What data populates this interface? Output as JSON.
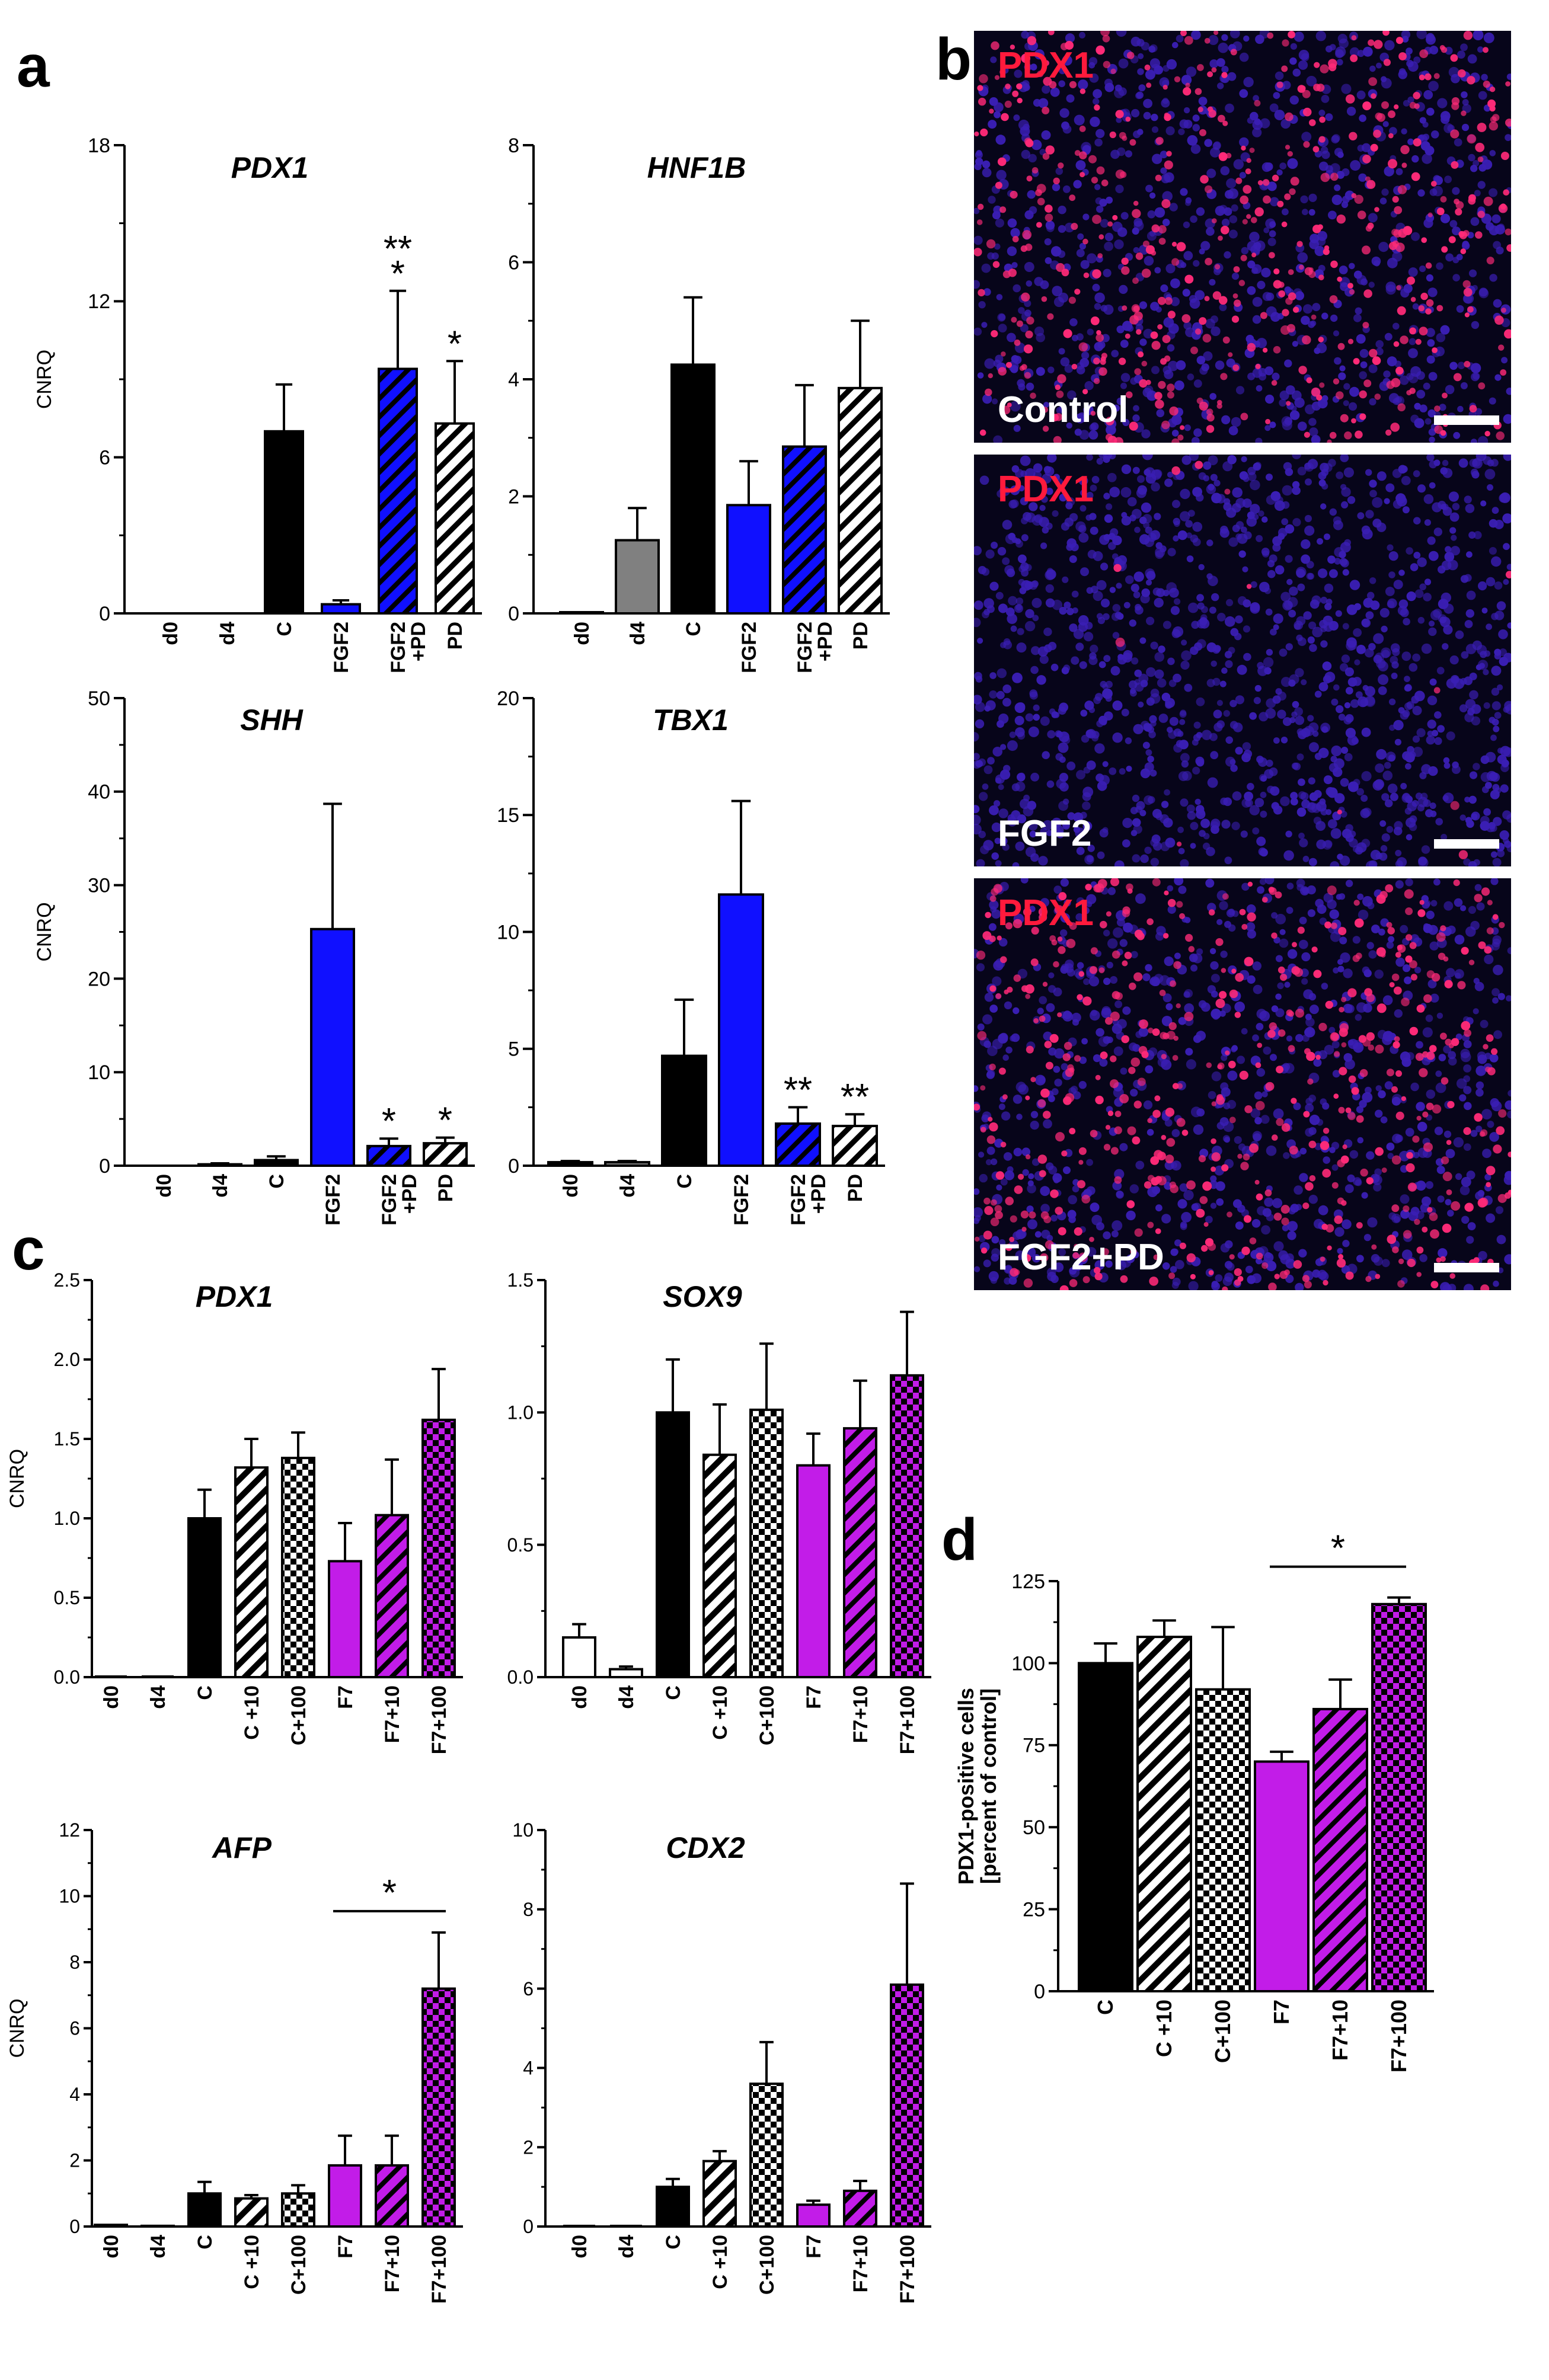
{
  "figure": {
    "panels": {
      "a": "a",
      "b": "b",
      "c": "c",
      "d": "d"
    },
    "fill_colors": {
      "black": "#000000",
      "gray": "#808080",
      "blue": "#1010ff",
      "magenta": "#c21ce8",
      "white": "#ffffff"
    }
  },
  "microscopy": {
    "marker": "PDX1",
    "images": [
      {
        "condition": "Control",
        "density": "high"
      },
      {
        "condition": "FGF2",
        "density": "low"
      },
      {
        "condition": "FGF2+PD",
        "density": "high"
      }
    ],
    "colors": {
      "nucleus": "#3a1eb4",
      "pdx1": "#ff2a78",
      "background": "#07051a"
    }
  },
  "chart_data": [
    {
      "id": "a-pdx1",
      "type": "bar",
      "title": "PDX1",
      "ylabel": "CNRQ",
      "ylim": [
        0,
        18
      ],
      "yticks": [
        0,
        6,
        12,
        18
      ],
      "categories": [
        "d0",
        "d4",
        "C",
        "FGF2",
        "FGF2\n+PD",
        "PD"
      ],
      "values": [
        0,
        0,
        7.0,
        0.35,
        9.4,
        7.3
      ],
      "errors": [
        0,
        0,
        1.8,
        0.15,
        3.0,
        2.4
      ],
      "fills": [
        "black",
        "gray",
        "black",
        "blue",
        "blue",
        "white"
      ],
      "patterns": [
        "solid",
        "solid",
        "solid",
        "solid",
        "hatch",
        "hatch"
      ],
      "significance": [
        "",
        "",
        "",
        "",
        "**\n*",
        "*"
      ]
    },
    {
      "id": "a-hnf1b",
      "type": "bar",
      "title": "HNF1B",
      "ylabel": "",
      "ylim": [
        0,
        8
      ],
      "yticks": [
        0,
        2,
        4,
        6,
        8
      ],
      "categories": [
        "d0",
        "d4",
        "C",
        "FGF2",
        "FGF2\n+PD",
        "PD"
      ],
      "values": [
        0.02,
        1.25,
        4.25,
        1.85,
        2.85,
        3.85
      ],
      "errors": [
        0,
        0.55,
        1.15,
        0.75,
        1.05,
        1.15
      ],
      "fills": [
        "black",
        "gray",
        "black",
        "blue",
        "blue",
        "white"
      ],
      "patterns": [
        "solid",
        "solid",
        "solid",
        "solid",
        "hatch",
        "hatch"
      ],
      "significance": [
        "",
        "",
        "",
        "",
        "",
        ""
      ]
    },
    {
      "id": "a-shh",
      "type": "bar",
      "title": "SHH",
      "ylabel": "CNRQ",
      "ylim": [
        0,
        50
      ],
      "yticks": [
        0,
        10,
        20,
        30,
        40,
        50
      ],
      "categories": [
        "d0",
        "d4",
        "C",
        "FGF2",
        "FGF2\n+PD",
        "PD"
      ],
      "values": [
        0,
        0.15,
        0.6,
        25.3,
        2.1,
        2.4
      ],
      "errors": [
        0,
        0.1,
        0.4,
        13.4,
        0.8,
        0.6
      ],
      "fills": [
        "black",
        "gray",
        "black",
        "blue",
        "blue",
        "white"
      ],
      "patterns": [
        "solid",
        "solid",
        "solid",
        "solid",
        "hatch",
        "hatch"
      ],
      "significance": [
        "",
        "",
        "",
        "",
        "*",
        "*"
      ]
    },
    {
      "id": "a-tbx1",
      "type": "bar",
      "title": "TBX1",
      "ylabel": "",
      "ylim": [
        0,
        20
      ],
      "yticks": [
        0,
        5,
        10,
        15,
        20
      ],
      "categories": [
        "d0",
        "d4",
        "C",
        "FGF2",
        "FGF2\n+PD",
        "PD"
      ],
      "values": [
        0.15,
        0.15,
        4.7,
        11.6,
        1.8,
        1.7
      ],
      "errors": [
        0.05,
        0.05,
        2.4,
        4.0,
        0.7,
        0.5
      ],
      "fills": [
        "black",
        "gray",
        "black",
        "blue",
        "blue",
        "white"
      ],
      "patterns": [
        "solid",
        "solid",
        "solid",
        "solid",
        "hatch",
        "hatch"
      ],
      "significance": [
        "",
        "",
        "",
        "",
        "**",
        "**"
      ]
    },
    {
      "id": "c-pdx1",
      "type": "bar",
      "title": "PDX1",
      "ylabel": "CNRQ",
      "ylim": [
        0,
        2.5
      ],
      "yticks": [
        "0.0",
        "0.5",
        "1.0",
        "1.5",
        "2.0",
        "2.5"
      ],
      "categories": [
        "d0",
        "d4",
        "C",
        "C +10",
        "C+100",
        "F7",
        "F7+10",
        "F7+100"
      ],
      "values": [
        0,
        0,
        1.0,
        1.32,
        1.38,
        0.73,
        1.02,
        1.62
      ],
      "errors": [
        0,
        0,
        0.18,
        0.18,
        0.16,
        0.24,
        0.35,
        0.32
      ],
      "fills": [
        "white",
        "white",
        "black",
        "black",
        "black",
        "magenta",
        "magenta",
        "magenta"
      ],
      "patterns": [
        "solid",
        "solid",
        "solid",
        "hatch",
        "check",
        "solid",
        "hatch",
        "check"
      ],
      "significance": [
        "",
        "",
        "",
        "",
        "",
        "",
        "",
        ""
      ]
    },
    {
      "id": "c-sox9",
      "type": "bar",
      "title": "SOX9",
      "ylabel": "",
      "ylim": [
        0,
        1.5
      ],
      "yticks": [
        "0.0",
        "0.5",
        "1.0",
        "1.5"
      ],
      "categories": [
        "d0",
        "d4",
        "C",
        "C +10",
        "C+100",
        "F7",
        "F7+10",
        "F7+100"
      ],
      "values": [
        0.15,
        0.03,
        1.0,
        0.84,
        1.01,
        0.8,
        0.94,
        1.14
      ],
      "errors": [
        0.05,
        0.01,
        0.2,
        0.19,
        0.25,
        0.12,
        0.18,
        0.24
      ],
      "fills": [
        "white",
        "white",
        "black",
        "black",
        "black",
        "magenta",
        "magenta",
        "magenta"
      ],
      "patterns": [
        "solid",
        "solid",
        "solid",
        "hatch",
        "check",
        "solid",
        "hatch",
        "check"
      ],
      "significance": [
        "",
        "",
        "",
        "",
        "",
        "",
        "",
        ""
      ]
    },
    {
      "id": "c-afp",
      "type": "bar",
      "title": "AFP",
      "ylabel": "CNRQ",
      "ylim": [
        0,
        12
      ],
      "yticks": [
        0,
        2,
        4,
        6,
        8,
        10,
        12
      ],
      "categories": [
        "d0",
        "d4",
        "C",
        "C +10",
        "C+100",
        "F7",
        "F7+10",
        "F7+100"
      ],
      "values": [
        0.05,
        0.02,
        1.0,
        0.85,
        1.0,
        1.85,
        1.85,
        7.2
      ],
      "errors": [
        0,
        0,
        0.35,
        0.1,
        0.25,
        0.9,
        0.9,
        1.7
      ],
      "fills": [
        "white",
        "white",
        "black",
        "black",
        "black",
        "magenta",
        "magenta",
        "magenta"
      ],
      "patterns": [
        "solid",
        "solid",
        "solid",
        "hatch",
        "check",
        "solid",
        "hatch",
        "check"
      ],
      "significance": [
        "",
        "",
        "",
        "",
        "",
        "",
        "",
        ""
      ],
      "bracket": {
        "from": 5,
        "to": 7,
        "label": "*"
      }
    },
    {
      "id": "c-cdx2",
      "type": "bar",
      "title": "CDX2",
      "ylabel": "",
      "ylim": [
        0,
        10
      ],
      "yticks": [
        0,
        2,
        4,
        6,
        8,
        10
      ],
      "categories": [
        "d0",
        "d4",
        "C",
        "C +10",
        "C+100",
        "F7",
        "F7+10",
        "F7+100"
      ],
      "values": [
        0,
        0,
        1.0,
        1.65,
        3.6,
        0.55,
        0.9,
        6.1
      ],
      "errors": [
        0,
        0,
        0.2,
        0.25,
        1.05,
        0.1,
        0.25,
        2.55
      ],
      "fills": [
        "white",
        "white",
        "black",
        "black",
        "black",
        "magenta",
        "magenta",
        "magenta"
      ],
      "patterns": [
        "solid",
        "solid",
        "solid",
        "hatch",
        "check",
        "solid",
        "hatch",
        "check"
      ],
      "significance": [
        "",
        "",
        "",
        "",
        "",
        "",
        "",
        ""
      ]
    },
    {
      "id": "d-pdx1-cells",
      "type": "bar",
      "title": "",
      "ylabel": "PDX1-positive cells\n[percent of control]",
      "ylim": [
        0,
        125
      ],
      "yticks": [
        0,
        25,
        50,
        75,
        100,
        125
      ],
      "categories": [
        "C",
        "C +10",
        "C+100",
        "F7",
        "F7+10",
        "F7+100"
      ],
      "values": [
        100,
        108,
        92,
        70,
        86,
        118
      ],
      "errors": [
        6,
        5,
        19,
        3,
        9,
        2
      ],
      "fills": [
        "black",
        "black",
        "black",
        "magenta",
        "magenta",
        "magenta"
      ],
      "patterns": [
        "solid",
        "hatch",
        "check",
        "solid",
        "hatch",
        "check"
      ],
      "significance": [
        "",
        "",
        "",
        "",
        "",
        ""
      ],
      "bracket": {
        "from": 3,
        "to": 5,
        "label": "*"
      }
    }
  ]
}
